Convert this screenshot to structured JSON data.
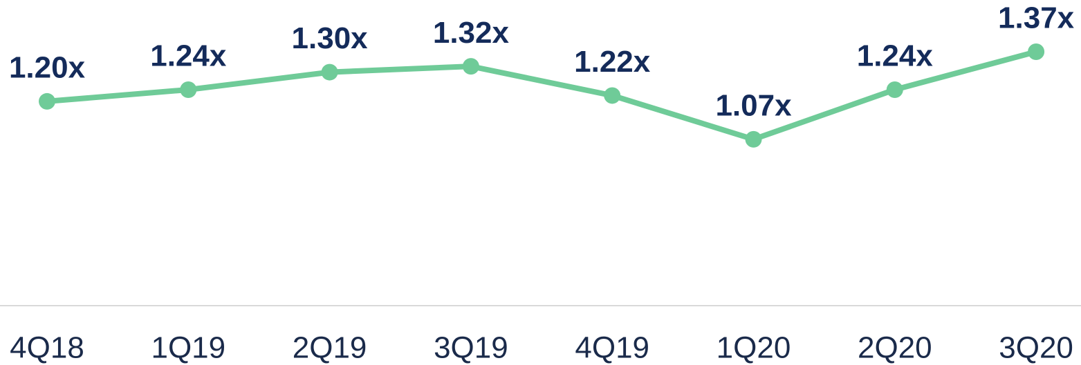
{
  "chart_data": {
    "type": "line",
    "categories": [
      "4Q18",
      "1Q19",
      "2Q19",
      "3Q19",
      "4Q19",
      "1Q20",
      "2Q20",
      "3Q20"
    ],
    "values": [
      1.2,
      1.24,
      1.3,
      1.32,
      1.22,
      1.07,
      1.24,
      1.37
    ],
    "value_labels": [
      "1.20x",
      "1.24x",
      "1.30x",
      "1.32x",
      "1.22x",
      "1.07x",
      "1.24x",
      "1.37x"
    ],
    "color": "#6fcb98",
    "ylim": [
      0.5,
      1.5
    ]
  }
}
